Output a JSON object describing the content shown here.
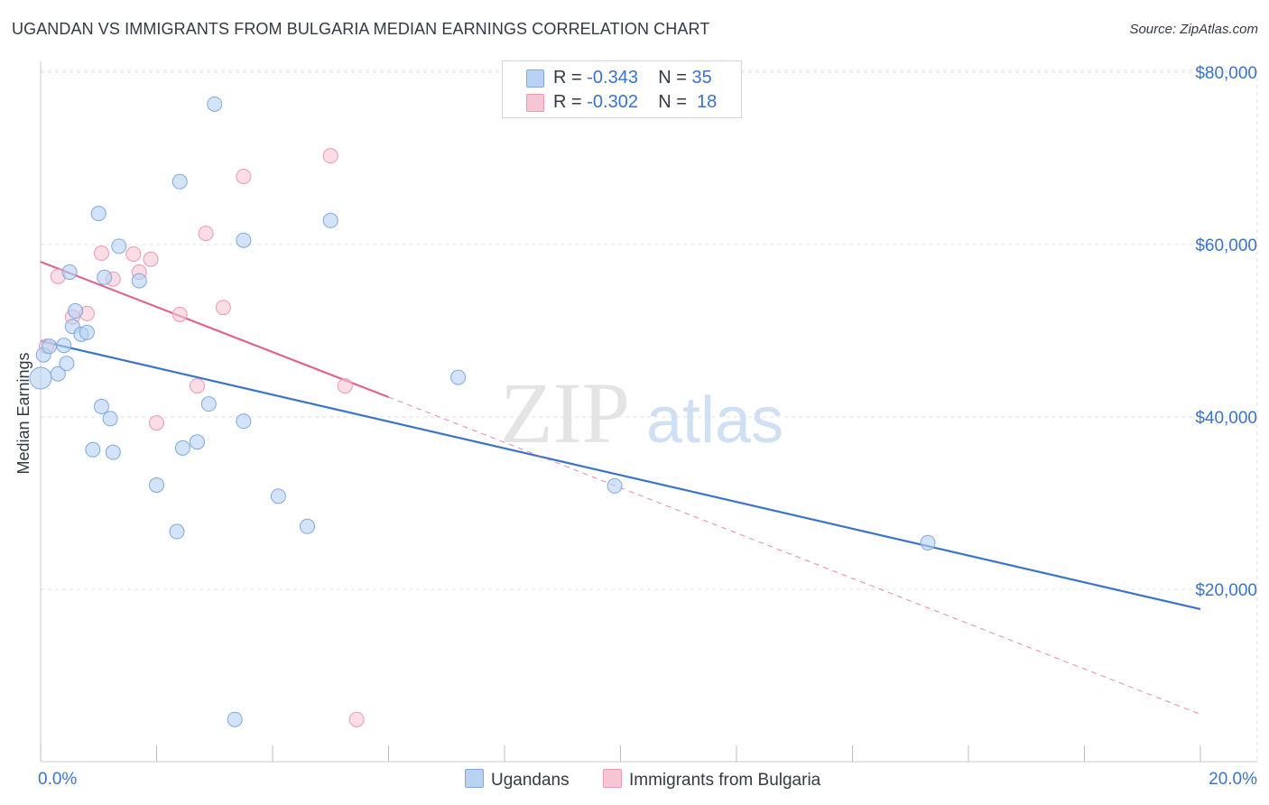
{
  "title": "UGANDAN VS IMMIGRANTS FROM BULGARIA MEDIAN EARNINGS CORRELATION CHART",
  "source": "Source: ZipAtlas.com",
  "watermark": {
    "zip": "ZIP",
    "atlas": "atlas"
  },
  "legend": {
    "rows": [
      {
        "r_label": "R =",
        "r_value": "-0.343",
        "n_label": "N =",
        "n_value": "35"
      },
      {
        "r_label": "R =",
        "r_value": "-0.302",
        "n_label": "N =",
        "n_value": "18"
      }
    ]
  },
  "bottom_legend": {
    "ugandans": "Ugandans",
    "bulgaria": "Immigrants from Bulgaria"
  },
  "colors": {
    "ugandans_fill": "#b8d2f3",
    "ugandans_stroke": "#7fa8dd",
    "ugandans_line": "#3a74c9",
    "bulgaria_fill": "#f7c6d4",
    "bulgaria_stroke": "#e99ab2",
    "bulgaria_line": "#e0648e",
    "tick_text": "#3a74c9",
    "grid": "#e3e3e3"
  },
  "chart_data": {
    "type": "scatter",
    "title": "UGANDAN VS IMMIGRANTS FROM BULGARIA MEDIAN EARNINGS CORRELATION CHART",
    "xlabel": "",
    "ylabel": "Median Earnings",
    "xlim": [
      0,
      20
    ],
    "ylim": [
      0,
      80000
    ],
    "x_tick_labels": [
      "0.0%",
      "20.0%"
    ],
    "y_ticks": [
      20000,
      40000,
      60000,
      80000
    ],
    "y_tick_labels": [
      "$20,000",
      "$40,000",
      "$60,000",
      "$80,000"
    ],
    "grid": true,
    "legend_position": "top-center",
    "series": [
      {
        "name": "Ugandans",
        "points": [
          [
            0.0,
            44500
          ],
          [
            0.05,
            47200
          ],
          [
            0.15,
            48200
          ],
          [
            0.3,
            45000
          ],
          [
            0.4,
            48300
          ],
          [
            0.45,
            46200
          ],
          [
            0.5,
            56800
          ],
          [
            0.55,
            50500
          ],
          [
            0.6,
            52300
          ],
          [
            0.7,
            49600
          ],
          [
            0.8,
            49800
          ],
          [
            0.9,
            36200
          ],
          [
            1.0,
            63600
          ],
          [
            1.05,
            41200
          ],
          [
            1.1,
            56200
          ],
          [
            1.2,
            39800
          ],
          [
            1.25,
            35900
          ],
          [
            1.35,
            59800
          ],
          [
            1.7,
            55800
          ],
          [
            2.0,
            32100
          ],
          [
            2.35,
            26700
          ],
          [
            2.4,
            67300
          ],
          [
            2.45,
            36400
          ],
          [
            2.7,
            37100
          ],
          [
            2.9,
            41500
          ],
          [
            3.0,
            76300
          ],
          [
            3.35,
            4900
          ],
          [
            3.5,
            60500
          ],
          [
            3.5,
            39500
          ],
          [
            4.1,
            30800
          ],
          [
            4.6,
            27300
          ],
          [
            5.0,
            62800
          ],
          [
            7.2,
            44600
          ],
          [
            9.9,
            32000
          ],
          [
            15.3,
            25400
          ]
        ],
        "trend": {
          "x": [
            0,
            20
          ],
          "y": [
            48800,
            17700
          ]
        }
      },
      {
        "name": "Immigrants from Bulgaria",
        "points": [
          [
            0.1,
            48200
          ],
          [
            0.3,
            56300
          ],
          [
            0.55,
            51600
          ],
          [
            0.8,
            52000
          ],
          [
            1.05,
            59000
          ],
          [
            1.25,
            56000
          ],
          [
            1.6,
            58900
          ],
          [
            1.7,
            56800
          ],
          [
            1.9,
            58300
          ],
          [
            2.0,
            39300
          ],
          [
            2.4,
            51900
          ],
          [
            2.7,
            43600
          ],
          [
            2.85,
            61300
          ],
          [
            3.15,
            52700
          ],
          [
            3.5,
            67900
          ],
          [
            5.0,
            70300
          ],
          [
            5.25,
            43600
          ],
          [
            5.45,
            4900
          ]
        ],
        "trend": {
          "x": [
            0,
            6.0
          ],
          "y": [
            58000,
            42300
          ]
        },
        "trend_extension": {
          "x": [
            6.0,
            20
          ],
          "y": [
            42300,
            5500
          ]
        }
      }
    ]
  }
}
